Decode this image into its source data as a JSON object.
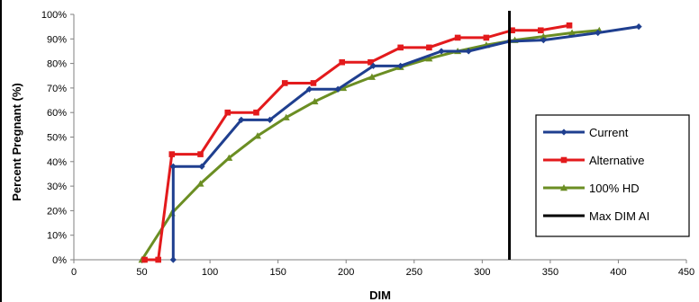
{
  "chart_data": {
    "type": "line",
    "xlabel": "DIM",
    "ylabel": "Percent Pregnant (%)",
    "xlim": [
      0,
      450
    ],
    "ylim": [
      0,
      100
    ],
    "x_ticks": [
      0,
      50,
      100,
      150,
      200,
      250,
      300,
      350,
      400,
      450
    ],
    "y_ticks": [
      0,
      10,
      20,
      30,
      40,
      50,
      60,
      70,
      80,
      90,
      100
    ],
    "y_tick_labels": [
      "0%",
      "10%",
      "20%",
      "30%",
      "40%",
      "50%",
      "60%",
      "70%",
      "80%",
      "90%",
      "100%"
    ],
    "grid": false,
    "legend_position": "right",
    "series": [
      {
        "name": "Current",
        "color": "#1f3f8f",
        "marker": "diamond",
        "step": true,
        "points": [
          [
            73,
            0
          ],
          [
            73,
            38
          ],
          [
            94,
            38
          ],
          [
            123,
            57
          ],
          [
            144,
            57
          ],
          [
            173,
            69.5
          ],
          [
            194,
            69.5
          ],
          [
            220,
            79
          ],
          [
            240,
            79
          ],
          [
            270,
            85
          ],
          [
            290,
            85
          ],
          [
            320,
            89
          ],
          [
            345,
            89.5
          ],
          [
            385,
            92.5
          ],
          [
            415,
            95
          ]
        ]
      },
      {
        "name": "Alternative",
        "color": "#e31a1c",
        "marker": "square",
        "step": true,
        "points": [
          [
            52,
            0
          ],
          [
            62,
            0
          ],
          [
            72,
            43
          ],
          [
            93,
            43
          ],
          [
            113,
            60
          ],
          [
            134,
            60
          ],
          [
            155,
            72
          ],
          [
            176,
            72
          ],
          [
            197,
            80.5
          ],
          [
            218,
            80.5
          ],
          [
            240,
            86.5
          ],
          [
            261,
            86.5
          ],
          [
            282,
            90.5
          ],
          [
            303,
            90.5
          ],
          [
            322,
            93.5
          ],
          [
            343,
            93.5
          ],
          [
            364,
            95.5
          ]
        ]
      },
      {
        "name": "100% HD",
        "color": "#6b8e23",
        "marker": "triangle",
        "step": false,
        "points": [
          [
            50,
            0
          ],
          [
            72,
            19
          ],
          [
            93,
            31
          ],
          [
            114,
            41.5
          ],
          [
            135,
            50.5
          ],
          [
            156,
            58
          ],
          [
            177,
            64.5
          ],
          [
            198,
            70
          ],
          [
            219,
            74.5
          ],
          [
            240,
            78.5
          ],
          [
            261,
            82
          ],
          [
            282,
            85
          ],
          [
            303,
            87.5
          ],
          [
            324,
            89.5
          ],
          [
            345,
            91
          ],
          [
            366,
            92.5
          ],
          [
            386,
            93.5
          ]
        ]
      },
      {
        "name": "Max DIM AI",
        "color": "#000000",
        "marker": "none",
        "vline_x": 320
      }
    ]
  }
}
